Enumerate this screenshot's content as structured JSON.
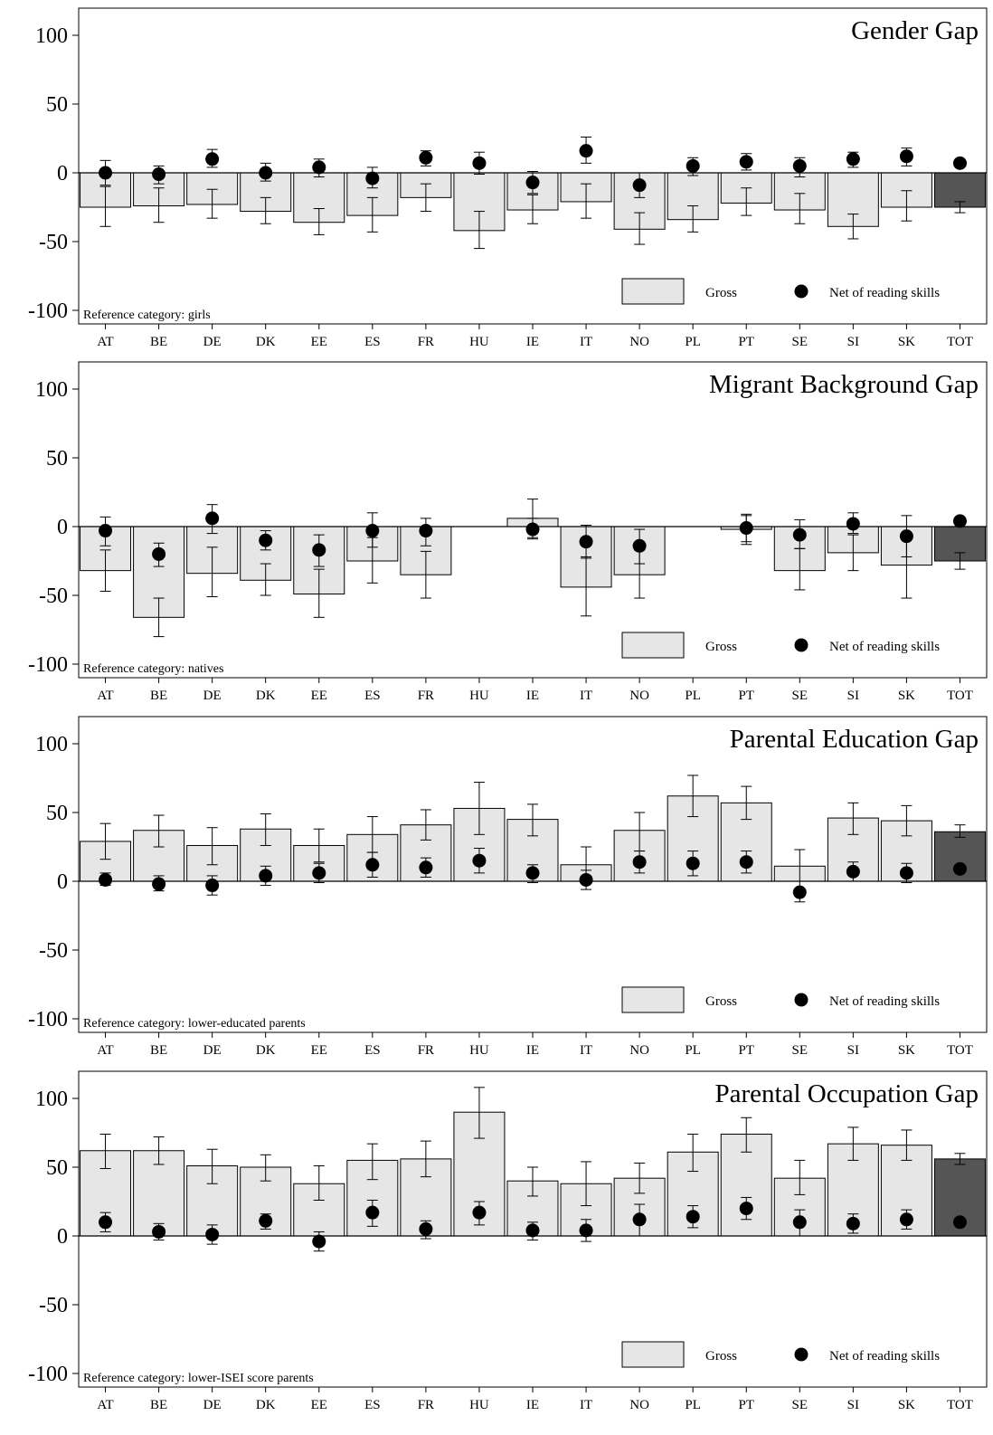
{
  "chart_data": [
    {
      "type": "bar",
      "title": "Gender Gap",
      "reference_note": "Reference category: girls",
      "categories": [
        "AT",
        "BE",
        "DE",
        "DK",
        "EE",
        "ES",
        "FR",
        "HU",
        "IE",
        "IT",
        "NO",
        "PL",
        "PT",
        "SE",
        "SI",
        "SK",
        "TOT"
      ],
      "ylim": [
        -100,
        100
      ],
      "yticks": [
        100,
        50,
        0,
        -50,
        -100
      ],
      "legend": {
        "position": "bottom-right",
        "gross_label": "Gross",
        "net_label": "Net of reading skills"
      },
      "series": [
        {
          "name": "Gross",
          "kind": "bar",
          "values": [
            -25,
            -24,
            -23,
            -28,
            -36,
            -31,
            -18,
            -42,
            -27,
            -21,
            -41,
            -34,
            -22,
            -27,
            -39,
            -25,
            -25
          ],
          "ci_low": [
            -39,
            -36,
            -33,
            -37,
            -45,
            -43,
            -28,
            -55,
            -37,
            -33,
            -52,
            -43,
            -31,
            -37,
            -48,
            -35,
            -29
          ],
          "ci_high": [
            -10,
            -11,
            -12,
            -18,
            -26,
            -18,
            -8,
            -28,
            -16,
            -8,
            -29,
            -24,
            -11,
            -15,
            -30,
            -13,
            -21
          ]
        },
        {
          "name": "Net of reading skills",
          "kind": "point",
          "values": [
            0,
            -1,
            10,
            0,
            4,
            -4,
            11,
            7,
            -7,
            16,
            -9,
            5,
            8,
            5,
            10,
            12,
            7
          ],
          "ci_low": [
            -9,
            -8,
            4,
            -6,
            -3,
            -11,
            5,
            -1,
            -15,
            7,
            -18,
            -2,
            2,
            -3,
            4,
            5,
            6
          ],
          "ci_high": [
            9,
            5,
            17,
            7,
            10,
            4,
            16,
            15,
            1,
            26,
            0,
            11,
            14,
            11,
            15,
            18,
            8
          ]
        }
      ],
      "bar_colors": [
        "#e6e6e6",
        "#e6e6e6",
        "#e6e6e6",
        "#e6e6e6",
        "#e6e6e6",
        "#e6e6e6",
        "#e6e6e6",
        "#e6e6e6",
        "#e6e6e6",
        "#e6e6e6",
        "#e6e6e6",
        "#e6e6e6",
        "#e6e6e6",
        "#e6e6e6",
        "#e6e6e6",
        "#e6e6e6",
        "#555555"
      ]
    },
    {
      "type": "bar",
      "title": "Migrant Background Gap",
      "reference_note": "Reference category: natives",
      "categories": [
        "AT",
        "BE",
        "DE",
        "DK",
        "EE",
        "ES",
        "FR",
        "HU",
        "IE",
        "IT",
        "NO",
        "PL",
        "PT",
        "SE",
        "SI",
        "SK",
        "TOT"
      ],
      "ylim": [
        -100,
        100
      ],
      "yticks": [
        100,
        50,
        0,
        -50,
        -100
      ],
      "legend": {
        "position": "bottom-right",
        "gross_label": "Gross",
        "net_label": "Net of reading skills"
      },
      "series": [
        {
          "name": "Gross",
          "kind": "bar",
          "values": [
            -32,
            -66,
            -34,
            -39,
            -49,
            -25,
            -35,
            0,
            6,
            -44,
            -35,
            0,
            -2,
            -32,
            -19,
            -28,
            -25
          ],
          "ci_low": [
            -47,
            -80,
            -51,
            -50,
            -66,
            -41,
            -52,
            null,
            -8,
            -65,
            -52,
            null,
            -13,
            -46,
            -32,
            -52,
            -31
          ],
          "ci_high": [
            -17,
            -52,
            -15,
            -27,
            -31,
            -8,
            -18,
            null,
            20,
            -22,
            -17,
            null,
            9,
            -16,
            -6,
            -5,
            -19
          ]
        },
        {
          "name": "Net of reading skills",
          "kind": "point",
          "values": [
            -3,
            -20,
            6,
            -10,
            -17,
            -3,
            -3,
            null,
            -2,
            -11,
            -14,
            null,
            -1,
            -6,
            2,
            -7,
            4
          ],
          "ci_low": [
            -14,
            -29,
            -5,
            -17,
            -29,
            -15,
            -14,
            null,
            -9,
            -23,
            -27,
            null,
            -11,
            -16,
            -5,
            -22,
            2
          ],
          "ci_high": [
            7,
            -12,
            16,
            -3,
            -6,
            10,
            6,
            null,
            6,
            1,
            -2,
            null,
            8,
            5,
            10,
            8,
            6
          ]
        }
      ],
      "bar_colors": [
        "#e6e6e6",
        "#e6e6e6",
        "#e6e6e6",
        "#e6e6e6",
        "#e6e6e6",
        "#e6e6e6",
        "#e6e6e6",
        "#e6e6e6",
        "#e6e6e6",
        "#e6e6e6",
        "#e6e6e6",
        "#e6e6e6",
        "#e6e6e6",
        "#e6e6e6",
        "#e6e6e6",
        "#e6e6e6",
        "#555555"
      ]
    },
    {
      "type": "bar",
      "title": "Parental Education Gap",
      "reference_note": "Reference category: lower-educated parents",
      "categories": [
        "AT",
        "BE",
        "DE",
        "DK",
        "EE",
        "ES",
        "FR",
        "HU",
        "IE",
        "IT",
        "NO",
        "PL",
        "PT",
        "SE",
        "SI",
        "SK",
        "TOT"
      ],
      "ylim": [
        -100,
        100
      ],
      "yticks": [
        100,
        50,
        0,
        -50,
        -100
      ],
      "legend": {
        "position": "bottom-right",
        "gross_label": "Gross",
        "net_label": "Net of reading skills"
      },
      "series": [
        {
          "name": "Gross",
          "kind": "bar",
          "values": [
            29,
            37,
            26,
            38,
            26,
            34,
            41,
            53,
            45,
            12,
            37,
            62,
            57,
            11,
            46,
            44,
            36
          ],
          "ci_low": [
            16,
            25,
            12,
            26,
            14,
            21,
            30,
            34,
            33,
            0,
            22,
            47,
            45,
            0,
            34,
            33,
            32
          ],
          "ci_high": [
            42,
            48,
            39,
            49,
            38,
            47,
            52,
            72,
            56,
            25,
            50,
            77,
            69,
            23,
            57,
            55,
            41
          ]
        },
        {
          "name": "Net of reading skills",
          "kind": "point",
          "values": [
            1,
            -2,
            -3,
            4,
            6,
            12,
            10,
            15,
            6,
            1,
            14,
            13,
            14,
            -8,
            7,
            6,
            9
          ],
          "ci_low": [
            -3,
            -7,
            -10,
            -3,
            -1,
            3,
            3,
            6,
            -1,
            -6,
            6,
            4,
            6,
            -15,
            0,
            -1,
            8
          ],
          "ci_high": [
            6,
            4,
            4,
            11,
            13,
            21,
            17,
            24,
            12,
            8,
            22,
            22,
            22,
            0,
            14,
            13,
            10
          ]
        }
      ],
      "bar_colors": [
        "#e6e6e6",
        "#e6e6e6",
        "#e6e6e6",
        "#e6e6e6",
        "#e6e6e6",
        "#e6e6e6",
        "#e6e6e6",
        "#e6e6e6",
        "#e6e6e6",
        "#e6e6e6",
        "#e6e6e6",
        "#e6e6e6",
        "#e6e6e6",
        "#e6e6e6",
        "#e6e6e6",
        "#e6e6e6",
        "#555555"
      ]
    },
    {
      "type": "bar",
      "title": "Parental Occupation Gap",
      "reference_note": "Reference category: lower-ISEI score parents",
      "categories": [
        "AT",
        "BE",
        "DE",
        "DK",
        "EE",
        "ES",
        "FR",
        "HU",
        "IE",
        "IT",
        "NO",
        "PL",
        "PT",
        "SE",
        "SI",
        "SK",
        "TOT"
      ],
      "ylim": [
        -100,
        100
      ],
      "yticks": [
        100,
        50,
        0,
        -50,
        -100
      ],
      "legend": {
        "position": "bottom-right",
        "gross_label": "Gross",
        "net_label": "Net of reading skills"
      },
      "series": [
        {
          "name": "Gross",
          "kind": "bar",
          "values": [
            62,
            62,
            51,
            50,
            38,
            55,
            56,
            90,
            40,
            38,
            42,
            61,
            74,
            42,
            67,
            66,
            56
          ],
          "ci_low": [
            49,
            52,
            38,
            40,
            26,
            41,
            43,
            71,
            29,
            22,
            31,
            47,
            61,
            30,
            55,
            55,
            52
          ],
          "ci_high": [
            74,
            72,
            63,
            59,
            51,
            67,
            69,
            108,
            50,
            54,
            53,
            74,
            86,
            55,
            79,
            77,
            60
          ]
        },
        {
          "name": "Net of reading skills",
          "kind": "point",
          "values": [
            10,
            3,
            1,
            11,
            -4,
            17,
            5,
            17,
            4,
            4,
            12,
            14,
            20,
            10,
            9,
            12,
            10
          ],
          "ci_low": [
            3,
            -3,
            -6,
            5,
            -11,
            7,
            -2,
            8,
            -3,
            -4,
            0,
            6,
            12,
            0,
            2,
            5,
            9
          ],
          "ci_high": [
            17,
            9,
            8,
            16,
            3,
            26,
            11,
            25,
            10,
            12,
            23,
            22,
            28,
            19,
            16,
            19,
            11
          ]
        }
      ],
      "bar_colors": [
        "#e6e6e6",
        "#e6e6e6",
        "#e6e6e6",
        "#e6e6e6",
        "#e6e6e6",
        "#e6e6e6",
        "#e6e6e6",
        "#e6e6e6",
        "#e6e6e6",
        "#e6e6e6",
        "#e6e6e6",
        "#e6e6e6",
        "#e6e6e6",
        "#e6e6e6",
        "#e6e6e6",
        "#e6e6e6",
        "#555555"
      ]
    }
  ]
}
